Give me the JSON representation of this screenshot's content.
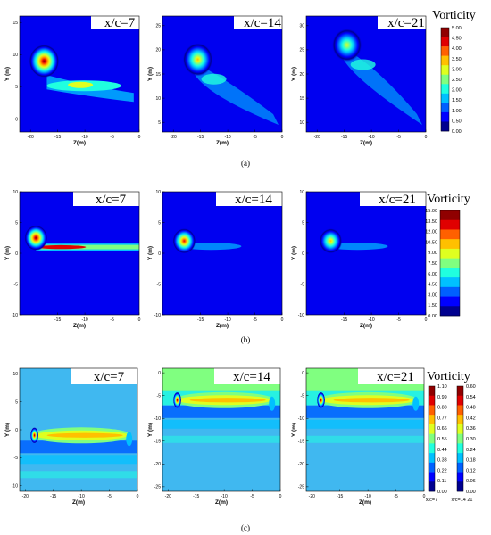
{
  "figure": {
    "captions": [
      "(a)",
      "(b)",
      "(c)"
    ],
    "colors": {
      "colormap": [
        "#00008f",
        "#0000ff",
        "#0060ff",
        "#00c0ff",
        "#20ffdf",
        "#80ff80",
        "#dfff20",
        "#ffc000",
        "#ff6000",
        "#e00000",
        "#900000"
      ],
      "background_row_a_b": "#0000f0",
      "background_row_c": "#40b8f0"
    }
  },
  "chart_data": [
    {
      "type": "heatmap",
      "row": "a",
      "title": "x/c=7",
      "xlabel": "Z(m)",
      "ylabel": "Y (m)",
      "xlim": [
        -22,
        0
      ],
      "ylim": [
        -2,
        16
      ],
      "xticks": [
        "-20",
        "-15",
        "-10",
        "-5",
        "0"
      ],
      "yticks": [
        "0",
        "5",
        "10",
        "15"
      ],
      "vortex_core": {
        "z": -17.5,
        "y": 9,
        "peak_vorticity": 5.0
      },
      "wake": {
        "z_range": [
          -17,
          -2
        ],
        "y": 6
      }
    },
    {
      "type": "heatmap",
      "row": "a",
      "title": "x/c=14",
      "xlabel": "Z(m)",
      "ylabel": "Y (m)",
      "xlim": [
        -22,
        0
      ],
      "ylim": [
        3,
        27
      ],
      "xticks": [
        "-20",
        "-15",
        "-10",
        "-5",
        "0"
      ],
      "yticks": [
        "5",
        "10",
        "15",
        "20",
        "25"
      ],
      "vortex_core": {
        "z": -15.5,
        "y": 18,
        "peak_vorticity": 3.5
      }
    },
    {
      "type": "heatmap",
      "row": "a",
      "title": "x/c=21",
      "xlabel": "Z(m)",
      "ylabel": "Y (m)",
      "xlim": [
        -22,
        0
      ],
      "ylim": [
        8,
        32
      ],
      "xticks": [
        "-20",
        "-15",
        "-10",
        "-5",
        "0"
      ],
      "yticks": [
        "10",
        "15",
        "20",
        "25",
        "30"
      ],
      "vortex_core": {
        "z": -14.5,
        "y": 26,
        "peak_vorticity": 3.0
      }
    },
    {
      "type": "colorbar",
      "row": "a",
      "label": "Vorticity",
      "ticks": [
        "5.00",
        "4.50",
        "4.00",
        "3.50",
        "3.00",
        "2.50",
        "2.00",
        "1.50",
        "1.00",
        "0.50",
        "0.00"
      ],
      "range": [
        0,
        5
      ]
    },
    {
      "type": "heatmap",
      "row": "b",
      "title": "x/c=7",
      "xlabel": "Z(m)",
      "ylabel": "Y (m)",
      "xlim": [
        -22,
        0
      ],
      "ylim": [
        -10,
        10
      ],
      "xticks": [
        "-15",
        "-10",
        "-5",
        "0"
      ],
      "yticks": [
        "-10",
        "-5",
        "0",
        "5",
        "10"
      ],
      "vortex_core": {
        "z": -19,
        "y": 2.5,
        "peak_vorticity": 15.0
      },
      "wake": {
        "z_range": [
          -19,
          0
        ],
        "y": 1
      }
    },
    {
      "type": "heatmap",
      "row": "b",
      "title": "x/c=14",
      "xlabel": "Z(m)",
      "ylabel": "Y (m)",
      "xlim": [
        -22,
        0
      ],
      "ylim": [
        -10,
        10
      ],
      "xticks": [
        "-15",
        "-10",
        "-5",
        "0"
      ],
      "yticks": [
        "-10",
        "-5",
        "0",
        "5",
        "10"
      ],
      "vortex_core": {
        "z": -18,
        "y": 2,
        "peak_vorticity": 13.5
      }
    },
    {
      "type": "heatmap",
      "row": "b",
      "title": "x/c=21",
      "xlabel": "Z(m)",
      "ylabel": "Y (m)",
      "xlim": [
        -22,
        0
      ],
      "ylim": [
        -10,
        10
      ],
      "xticks": [
        "-15",
        "-10",
        "-5",
        "0"
      ],
      "yticks": [
        "-10",
        "-5",
        "0",
        "5",
        "10"
      ],
      "vortex_core": {
        "z": -17.5,
        "y": 2,
        "peak_vorticity": 10.5
      }
    },
    {
      "type": "colorbar",
      "row": "b",
      "label": "Vorticity",
      "ticks": [
        "15.00",
        "13.50",
        "12.00",
        "10.50",
        "9.00",
        "7.50",
        "6.00",
        "4.50",
        "3.00",
        "1.50",
        "0.00"
      ],
      "range": [
        0,
        15
      ]
    },
    {
      "type": "heatmap",
      "row": "c",
      "title": "x/c=7",
      "xlabel": "Z(m)",
      "ylabel": "Y (m)",
      "xlim": [
        -21,
        0
      ],
      "ylim": [
        -11,
        11
      ],
      "xticks": [
        "-20",
        "-15",
        "-10",
        "-5",
        "0"
      ],
      "yticks": [
        "-10",
        "-5",
        "0",
        "5",
        "10"
      ],
      "band": {
        "z_range": [
          -19,
          -1
        ],
        "y": -1,
        "peak_vorticity": 1.0
      }
    },
    {
      "type": "heatmap",
      "row": "c",
      "title": "x/c=14",
      "xlabel": "Z(m)",
      "ylabel": "Y (m)",
      "xlim": [
        -21,
        0
      ],
      "ylim": [
        -26,
        1
      ],
      "xticks": [
        "-20",
        "-15",
        "-10",
        "-5",
        "0"
      ],
      "yticks": [
        "0",
        "-5",
        "-10",
        "-15",
        "-20",
        "-25"
      ],
      "band": {
        "z_range": [
          -19,
          -1
        ],
        "y": -6,
        "peak_vorticity": 0.6
      }
    },
    {
      "type": "heatmap",
      "row": "c",
      "title": "x/c=21",
      "xlabel": "Z(m)",
      "ylabel": "Y (m)",
      "xlim": [
        -21,
        0
      ],
      "ylim": [
        -26,
        1
      ],
      "xticks": [
        "-20",
        "-15",
        "-10",
        "-5",
        "0"
      ],
      "yticks": [
        "0",
        "-5",
        "-10",
        "-15",
        "-20",
        "-25"
      ],
      "band": {
        "z_range": [
          -19,
          -1
        ],
        "y": -6,
        "peak_vorticity": 0.5
      }
    },
    {
      "type": "colorbar",
      "row": "c",
      "label": "Vorticity",
      "sublabel": "x/c=7",
      "ticks": [
        "1.10",
        "0.99",
        "0.88",
        "0.77",
        "0.66",
        "0.55",
        "0.44",
        "0.33",
        "0.22",
        "0.11",
        "0.00"
      ],
      "range": [
        0,
        1.1
      ]
    },
    {
      "type": "colorbar",
      "row": "c",
      "label": "",
      "sublabel": "x/c=14 21",
      "ticks": [
        "0.60",
        "0.54",
        "0.48",
        "0.42",
        "0.36",
        "0.30",
        "0.24",
        "0.18",
        "0.12",
        "0.06",
        "0.00"
      ],
      "range": [
        0,
        0.6
      ]
    }
  ]
}
